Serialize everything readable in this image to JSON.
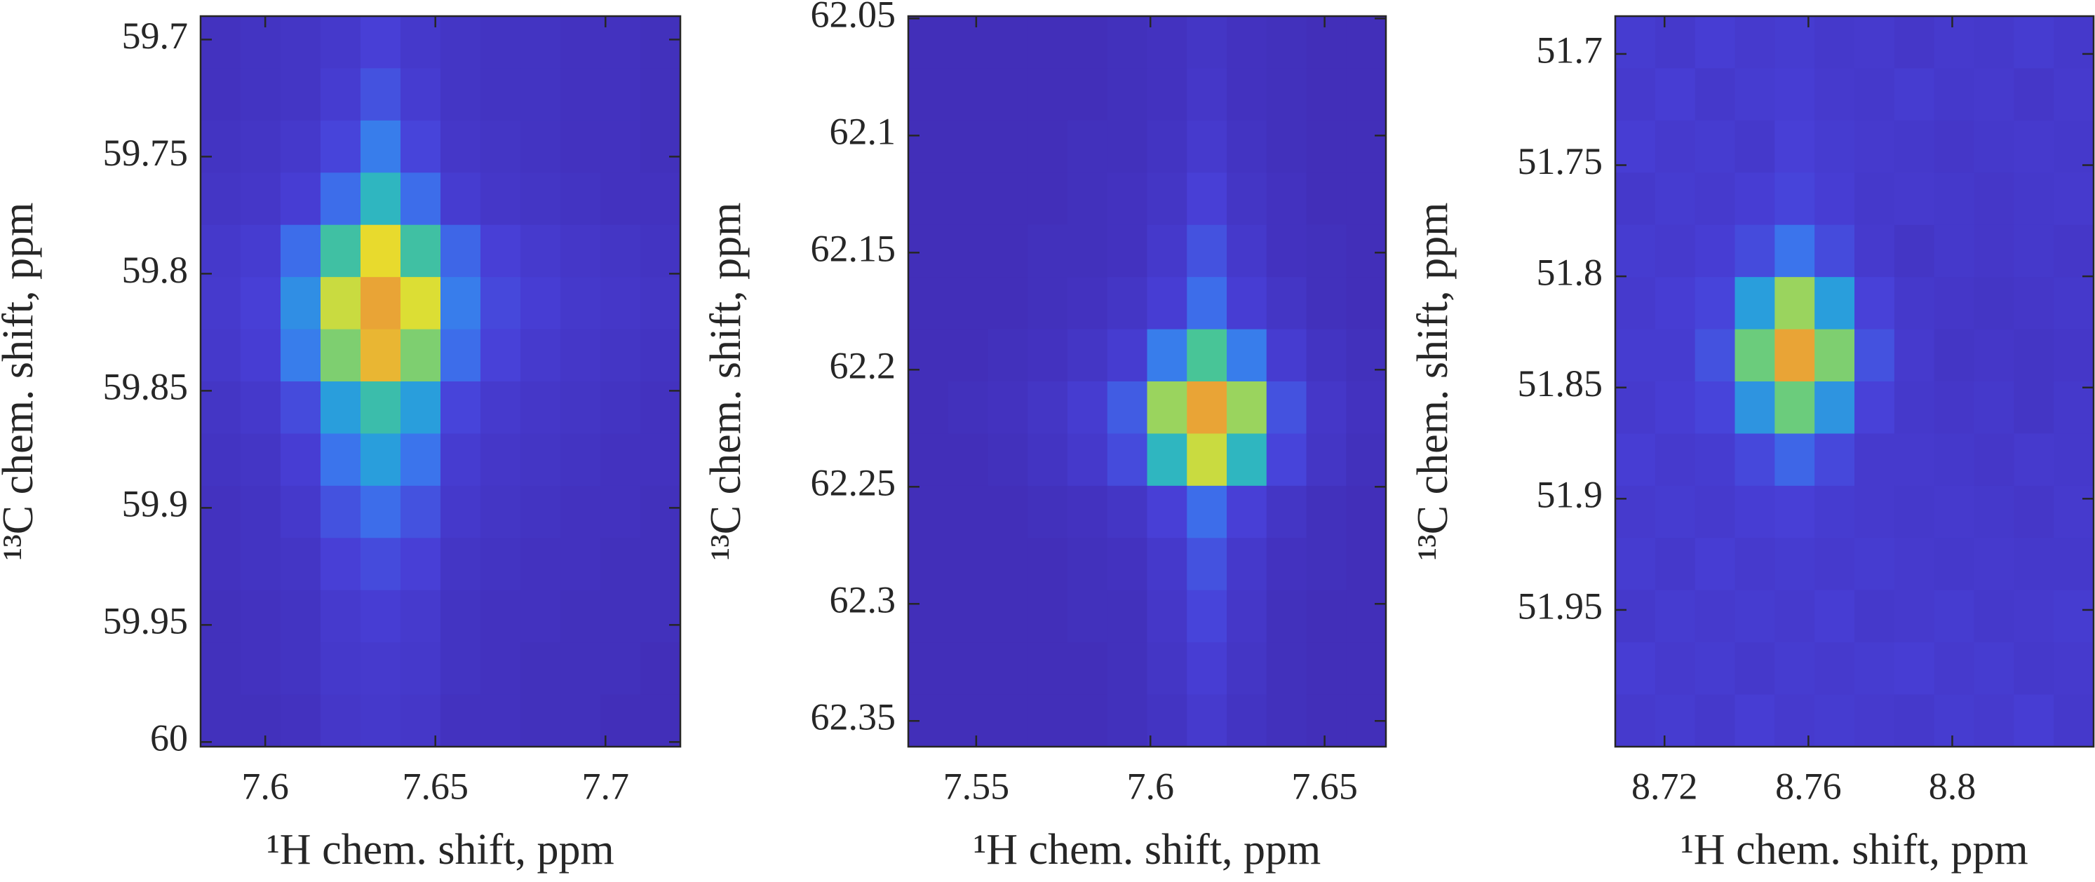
{
  "chart_data": [
    {
      "type": "heatmap",
      "x_label": "¹H chem. shift, ppm",
      "y_label": "¹³C chem. shift, ppm",
      "xlim": [
        7.581,
        7.722
      ],
      "ylim": [
        59.69,
        60.002
      ],
      "y_reversed": true,
      "xticks": [
        7.6,
        7.65,
        7.7
      ],
      "yticks": [
        59.7,
        59.75,
        59.8,
        59.85,
        59.9,
        59.95,
        60
      ],
      "zlim": [
        0,
        1
      ],
      "colormap": [
        "#3e26a8",
        "#4840d8",
        "#3a78ee",
        "#22aed4",
        "#4cc790",
        "#e8e02c",
        "#e9a436"
      ],
      "z": [
        [
          0.08,
          0.09,
          0.1,
          0.12,
          0.16,
          0.12,
          0.1,
          0.09,
          0.09,
          0.08,
          0.08,
          0.07
        ],
        [
          0.08,
          0.09,
          0.1,
          0.14,
          0.22,
          0.14,
          0.1,
          0.09,
          0.09,
          0.08,
          0.08,
          0.07
        ],
        [
          0.09,
          0.1,
          0.12,
          0.18,
          0.35,
          0.18,
          0.11,
          0.1,
          0.09,
          0.08,
          0.08,
          0.07
        ],
        [
          0.1,
          0.11,
          0.15,
          0.3,
          0.55,
          0.3,
          0.14,
          0.11,
          0.1,
          0.09,
          0.08,
          0.08
        ],
        [
          0.12,
          0.14,
          0.3,
          0.62,
          0.85,
          0.62,
          0.28,
          0.16,
          0.13,
          0.11,
          0.1,
          0.09
        ],
        [
          0.13,
          0.16,
          0.4,
          0.8,
          1,
          0.82,
          0.35,
          0.19,
          0.15,
          0.12,
          0.11,
          0.1
        ],
        [
          0.12,
          0.15,
          0.35,
          0.72,
          0.95,
          0.72,
          0.3,
          0.17,
          0.13,
          0.11,
          0.1,
          0.09
        ],
        [
          0.1,
          0.12,
          0.2,
          0.45,
          0.6,
          0.45,
          0.18,
          0.13,
          0.11,
          0.1,
          0.09,
          0.08
        ],
        [
          0.09,
          0.1,
          0.15,
          0.32,
          0.45,
          0.32,
          0.14,
          0.11,
          0.1,
          0.09,
          0.08,
          0.08
        ],
        [
          0.08,
          0.09,
          0.12,
          0.22,
          0.3,
          0.22,
          0.12,
          0.1,
          0.09,
          0.08,
          0.08,
          0.07
        ],
        [
          0.08,
          0.09,
          0.1,
          0.16,
          0.2,
          0.16,
          0.1,
          0.09,
          0.08,
          0.08,
          0.07,
          0.07
        ],
        [
          0.07,
          0.08,
          0.09,
          0.13,
          0.15,
          0.13,
          0.09,
          0.08,
          0.08,
          0.07,
          0.07,
          0.07
        ],
        [
          0.07,
          0.08,
          0.09,
          0.12,
          0.13,
          0.12,
          0.09,
          0.08,
          0.07,
          0.07,
          0.07,
          0.06
        ],
        [
          0.07,
          0.07,
          0.08,
          0.11,
          0.12,
          0.11,
          0.08,
          0.08,
          0.07,
          0.07,
          0.06,
          0.06
        ]
      ]
    },
    {
      "type": "heatmap",
      "x_label": "¹H chem. shift, ppm",
      "y_label": "¹³C chem. shift, ppm",
      "xlim": [
        7.5305,
        7.6676
      ],
      "ylim": [
        62.049,
        62.361
      ],
      "y_reversed": true,
      "xticks": [
        7.55,
        7.6,
        7.65
      ],
      "yticks": [
        62.05,
        62.1,
        62.15,
        62.2,
        62.25,
        62.3,
        62.35
      ],
      "zlim": [
        0,
        1
      ],
      "colormap": [
        "#3e26a8",
        "#4840d8",
        "#3a78ee",
        "#22aed4",
        "#4cc790",
        "#e8e02c",
        "#e9a436"
      ],
      "z": [
        [
          0.06,
          0.06,
          0.06,
          0.06,
          0.06,
          0.07,
          0.08,
          0.1,
          0.08,
          0.07,
          0.06,
          0.06
        ],
        [
          0.06,
          0.06,
          0.06,
          0.06,
          0.06,
          0.07,
          0.08,
          0.11,
          0.08,
          0.07,
          0.06,
          0.06
        ],
        [
          0.06,
          0.06,
          0.06,
          0.06,
          0.07,
          0.07,
          0.09,
          0.13,
          0.09,
          0.07,
          0.06,
          0.06
        ],
        [
          0.06,
          0.06,
          0.06,
          0.06,
          0.07,
          0.08,
          0.1,
          0.16,
          0.1,
          0.08,
          0.06,
          0.06
        ],
        [
          0.06,
          0.06,
          0.06,
          0.07,
          0.07,
          0.08,
          0.12,
          0.22,
          0.12,
          0.08,
          0.07,
          0.06
        ],
        [
          0.06,
          0.06,
          0.06,
          0.07,
          0.08,
          0.1,
          0.15,
          0.3,
          0.15,
          0.1,
          0.07,
          0.06
        ],
        [
          0.06,
          0.06,
          0.07,
          0.08,
          0.1,
          0.14,
          0.35,
          0.65,
          0.35,
          0.14,
          0.09,
          0.07
        ],
        [
          0.06,
          0.07,
          0.08,
          0.1,
          0.14,
          0.25,
          0.75,
          1,
          0.75,
          0.22,
          0.11,
          0.08
        ],
        [
          0.06,
          0.06,
          0.07,
          0.09,
          0.12,
          0.2,
          0.55,
          0.8,
          0.55,
          0.18,
          0.1,
          0.07
        ],
        [
          0.06,
          0.06,
          0.06,
          0.07,
          0.08,
          0.1,
          0.16,
          0.3,
          0.16,
          0.1,
          0.07,
          0.06
        ],
        [
          0.06,
          0.06,
          0.06,
          0.06,
          0.07,
          0.08,
          0.12,
          0.22,
          0.12,
          0.08,
          0.07,
          0.06
        ],
        [
          0.06,
          0.06,
          0.06,
          0.06,
          0.07,
          0.07,
          0.11,
          0.18,
          0.11,
          0.07,
          0.06,
          0.06
        ],
        [
          0.06,
          0.06,
          0.06,
          0.06,
          0.06,
          0.07,
          0.1,
          0.15,
          0.1,
          0.07,
          0.06,
          0.06
        ],
        [
          0.06,
          0.06,
          0.06,
          0.06,
          0.06,
          0.07,
          0.09,
          0.13,
          0.09,
          0.07,
          0.06,
          0.06
        ]
      ]
    },
    {
      "type": "heatmap",
      "x_label": "¹H chem. shift, ppm",
      "y_label": "¹³C chem. shift, ppm",
      "xlim": [
        8.7063,
        8.8393
      ],
      "ylim": [
        51.683,
        52.0115
      ],
      "y_reversed": true,
      "xticks": [
        8.72,
        8.76,
        8.8
      ],
      "yticks": [
        51.7,
        51.75,
        51.8,
        51.85,
        51.9,
        51.95
      ],
      "zlim": [
        0,
        1
      ],
      "colormap": [
        "#3e26a8",
        "#4840d8",
        "#3a78ee",
        "#22aed4",
        "#4cc790",
        "#e8e02c",
        "#e9a436"
      ],
      "z": [
        [
          0.14,
          0.12,
          0.15,
          0.13,
          0.14,
          0.12,
          0.13,
          0.11,
          0.13,
          0.12,
          0.14,
          0.12
        ],
        [
          0.13,
          0.15,
          0.12,
          0.14,
          0.15,
          0.13,
          0.12,
          0.14,
          0.12,
          0.13,
          0.11,
          0.13
        ],
        [
          0.15,
          0.13,
          0.14,
          0.12,
          0.16,
          0.14,
          0.13,
          0.12,
          0.11,
          0.12,
          0.13,
          0.12
        ],
        [
          0.12,
          0.14,
          0.13,
          0.15,
          0.18,
          0.15,
          0.12,
          0.13,
          0.12,
          0.11,
          0.12,
          0.13
        ],
        [
          0.14,
          0.13,
          0.15,
          0.2,
          0.32,
          0.2,
          0.13,
          0.1,
          0.12,
          0.11,
          0.12,
          0.11
        ],
        [
          0.13,
          0.15,
          0.18,
          0.45,
          0.75,
          0.45,
          0.17,
          0.12,
          0.11,
          0.1,
          0.11,
          0.12
        ],
        [
          0.14,
          0.14,
          0.22,
          0.7,
          1,
          0.72,
          0.22,
          0.13,
          0.1,
          0.11,
          0.1,
          0.11
        ],
        [
          0.13,
          0.15,
          0.18,
          0.42,
          0.7,
          0.42,
          0.17,
          0.12,
          0.11,
          0.12,
          0.1,
          0.12
        ],
        [
          0.15,
          0.13,
          0.14,
          0.19,
          0.28,
          0.19,
          0.13,
          0.13,
          0.12,
          0.11,
          0.13,
          0.12
        ],
        [
          0.13,
          0.14,
          0.13,
          0.15,
          0.16,
          0.14,
          0.13,
          0.12,
          0.13,
          0.12,
          0.11,
          0.13
        ],
        [
          0.14,
          0.12,
          0.15,
          0.13,
          0.14,
          0.13,
          0.14,
          0.13,
          0.12,
          0.13,
          0.12,
          0.12
        ],
        [
          0.12,
          0.14,
          0.13,
          0.14,
          0.13,
          0.15,
          0.12,
          0.13,
          0.14,
          0.12,
          0.13,
          0.14
        ],
        [
          0.15,
          0.13,
          0.14,
          0.12,
          0.14,
          0.13,
          0.14,
          0.15,
          0.13,
          0.14,
          0.12,
          0.13
        ],
        [
          0.13,
          0.14,
          0.12,
          0.15,
          0.13,
          0.14,
          0.13,
          0.12,
          0.14,
          0.13,
          0.15,
          0.12
        ]
      ]
    }
  ]
}
